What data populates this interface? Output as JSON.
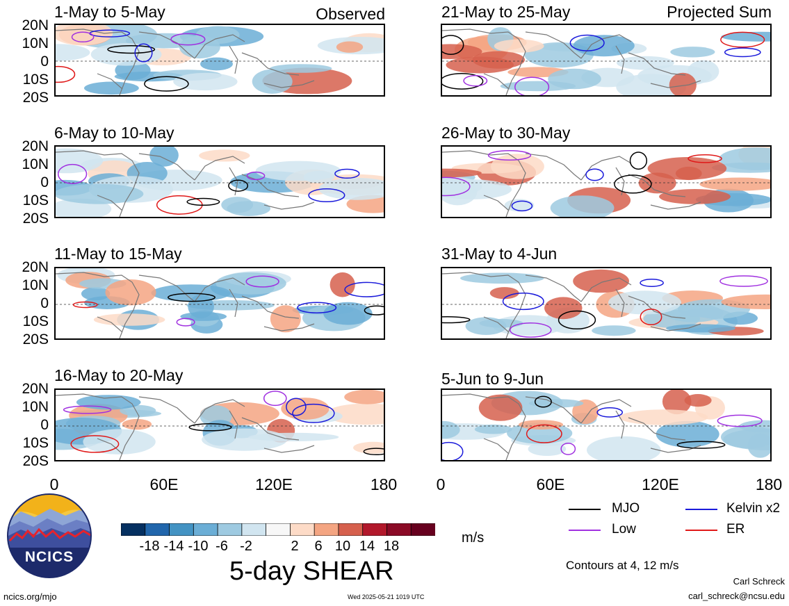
{
  "panels": [
    {
      "title": "1-May to 5-May",
      "tag": "Observed"
    },
    {
      "title": "6-May to 10-May",
      "tag": ""
    },
    {
      "title": "11-May to 15-May",
      "tag": ""
    },
    {
      "title": "16-May to 20-May",
      "tag": ""
    },
    {
      "title": "21-May to 25-May",
      "tag": "Projected Sum"
    },
    {
      "title": "26-May to 30-May",
      "tag": ""
    },
    {
      "title": "31-May to 4-Jun",
      "tag": ""
    },
    {
      "title": "5-Jun to 9-Jun",
      "tag": ""
    }
  ],
  "lat_labels": [
    "20N",
    "10N",
    "0",
    "10S",
    "20S"
  ],
  "lon_labels": [
    "0",
    "60E",
    "120E",
    "180"
  ],
  "colorbar": {
    "labels": [
      "-18",
      "-14",
      "-10",
      "-6",
      "-2",
      "2",
      "6",
      "10",
      "14",
      "18"
    ],
    "colors": [
      "#053061",
      "#2166ac",
      "#4393c3",
      "#6baed6",
      "#9ecae1",
      "#d1e5f0",
      "#f7f7f7",
      "#fddbc7",
      "#f4a582",
      "#d6604d",
      "#b2182b",
      "#8b0a26",
      "#67001f"
    ],
    "unit": "m/s",
    "title": "5-day SHEAR"
  },
  "legend": {
    "mjo": {
      "label": "MJO",
      "color": "#000000"
    },
    "kelvin": {
      "label": "Kelvin x2",
      "color": "#1a1adb"
    },
    "low": {
      "label": "Low",
      "color": "#a030e0"
    },
    "er": {
      "label": "ER",
      "color": "#e01818"
    },
    "contours_note": "Contours at 4, 12 m/s"
  },
  "logo": {
    "text": "NCICS"
  },
  "footer": {
    "url": "ncics.org/mjo",
    "timestamp": "Wed 2025-05-21 1019 UTC",
    "author": "Carl Schreck",
    "email": "carl_schreck@ncsu.edu"
  }
}
